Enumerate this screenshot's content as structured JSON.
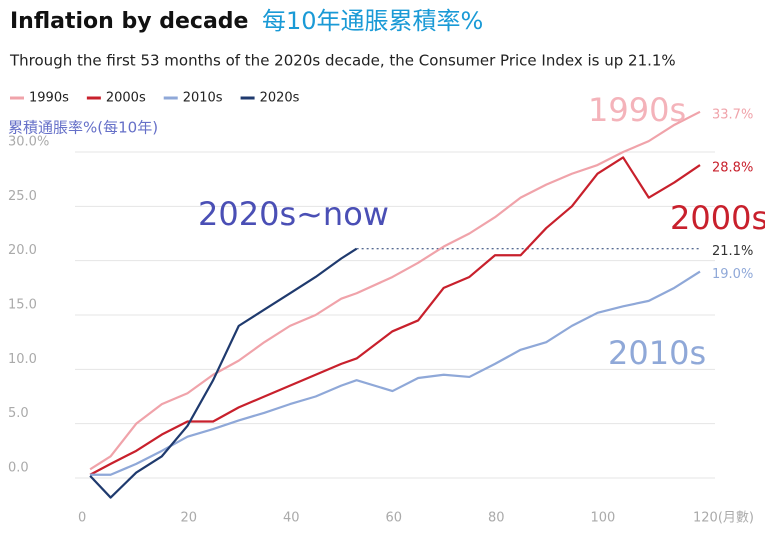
{
  "chart_data": {
    "type": "line",
    "title": "Inflation by decade",
    "title_zh": "每10年通脹累積率%",
    "subtitle": "Through the first 53 months of the 2020s decade, the Consumer Price Index is up 21.1%",
    "y_label": "累積通脹率%(每10年)",
    "annotations": [
      "1990s",
      "2000s",
      "2010s",
      "2020s~now"
    ],
    "x": [
      1,
      5,
      10,
      15,
      20,
      25,
      30,
      35,
      40,
      45,
      50,
      53,
      60,
      65,
      70,
      75,
      80,
      85,
      90,
      95,
      100,
      105,
      110,
      115,
      120
    ],
    "series": [
      {
        "name": "1990s",
        "color": "#f0a3aa",
        "values": [
          0.8,
          2,
          5,
          6.8,
          7.8,
          9.5,
          10.8,
          12.5,
          14,
          15,
          16.5,
          17,
          18.5,
          19.8,
          21.3,
          22.5,
          24,
          25.8,
          27,
          28,
          28.8,
          30,
          31,
          32.5,
          33.7
        ],
        "value_labels": [
          null,
          null,
          null,
          null,
          null,
          null,
          null,
          null,
          null,
          null,
          null,
          null,
          null,
          null,
          null,
          null,
          null,
          null,
          null,
          null,
          null,
          null,
          null,
          null,
          "33.7%"
        ]
      },
      {
        "name": "2000s",
        "color": "#c8202c",
        "values": [
          0.3,
          1.3,
          2.5,
          4,
          5.2,
          5.2,
          6.5,
          7.5,
          8.5,
          9.5,
          10.5,
          11,
          13.5,
          14.5,
          17.5,
          18.5,
          20.5,
          20.5,
          23,
          25,
          28,
          29.5,
          25.8,
          27.2,
          28.8
        ],
        "value_labels": [
          null,
          null,
          null,
          null,
          null,
          null,
          null,
          null,
          null,
          null,
          null,
          null,
          null,
          null,
          null,
          null,
          null,
          null,
          null,
          null,
          null,
          null,
          null,
          null,
          "28.8%"
        ]
      },
      {
        "name": "2010s",
        "color": "#8fa8d8",
        "values": [
          0.3,
          0.3,
          1.3,
          2.5,
          3.8,
          4.5,
          5.3,
          6,
          6.8,
          7.5,
          8.5,
          9,
          8,
          9.2,
          9.5,
          9.3,
          10.5,
          11.8,
          12.5,
          14,
          15.2,
          15.8,
          16.3,
          17.5,
          19.0
        ],
        "value_labels": [
          null,
          null,
          null,
          null,
          null,
          null,
          null,
          null,
          null,
          null,
          null,
          null,
          null,
          null,
          null,
          null,
          null,
          null,
          null,
          null,
          null,
          null,
          null,
          null,
          "19.0%"
        ]
      },
      {
        "name": "2020s",
        "color": "#1f3a6e",
        "values": [
          0.2,
          -1.8,
          0.5,
          2,
          4.8,
          9,
          14,
          15.5,
          17,
          18.5,
          20.2,
          21.1,
          null,
          null,
          null,
          null,
          null,
          null,
          null,
          null,
          null,
          null,
          null,
          null,
          null
        ],
        "value_labels": [
          null,
          null,
          null,
          null,
          null,
          null,
          null,
          null,
          null,
          null,
          null,
          "21.1%",
          null,
          null,
          null,
          null,
          null,
          null,
          null,
          null,
          null,
          null,
          null,
          null,
          null
        ]
      }
    ],
    "xlim": [
      0,
      120
    ],
    "xticks": [
      0,
      20,
      40,
      60,
      80,
      100,
      {
        "value": 120,
        "label": "120(月數)"
      }
    ],
    "ylim": [
      -2.5,
      30
    ],
    "yticks": [
      {
        "value": 0,
        "label": "0.0"
      },
      {
        "value": 5,
        "label": "5.0"
      },
      {
        "value": 10,
        "label": "10.0"
      },
      {
        "value": 15,
        "label": "15.0"
      },
      {
        "value": 20,
        "label": "20.0"
      },
      {
        "value": 25,
        "label": "25.0"
      },
      {
        "value": 30,
        "label": "30.0%"
      }
    ],
    "grid": true,
    "legend": "top-left"
  }
}
